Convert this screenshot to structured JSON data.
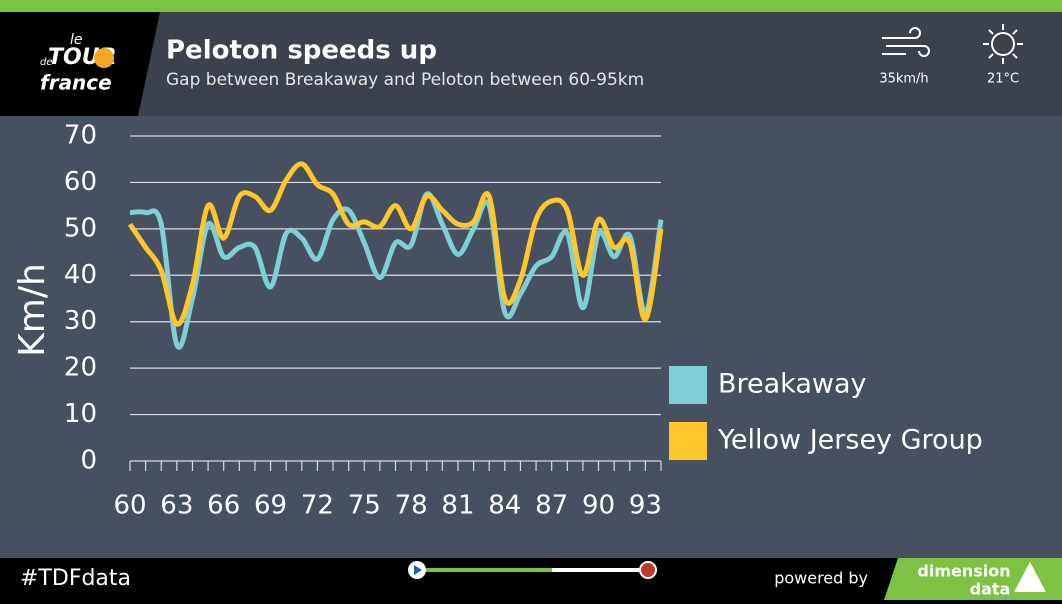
{
  "header": {
    "logo": [
      "le",
      "TOUR",
      "de",
      "france"
    ],
    "title": "Peloton speeds up",
    "subtitle": "Gap between Breakaway and Peloton between 60-95km"
  },
  "weather": {
    "wind": "35km/h",
    "temperature": "21°C"
  },
  "chart_data": {
    "type": "line",
    "y_label": "Km/h",
    "x": [
      60,
      61,
      62,
      63,
      64,
      65,
      66,
      67,
      68,
      69,
      70,
      71,
      72,
      73,
      74,
      75,
      76,
      77,
      78,
      79,
      80,
      81,
      82,
      83,
      84,
      85,
      86,
      87,
      88,
      89,
      90,
      91,
      92,
      93,
      94
    ],
    "series": [
      {
        "name": "Breakaway",
        "color": "#7ecfd6",
        "values": [
          53.5,
          53.5,
          51,
          25,
          35,
          51,
          44,
          46,
          46,
          37.5,
          49,
          48,
          43.5,
          52,
          54,
          47,
          39.5,
          47,
          46.5,
          57.5,
          51,
          44.5,
          50,
          55,
          32,
          36,
          42,
          44,
          49,
          33,
          49,
          44,
          48.5,
          32,
          52
        ]
      },
      {
        "name": "Yellow Jersey Group",
        "color": "#ffc72c",
        "values": [
          51,
          46,
          41,
          29.5,
          38,
          55,
          48,
          57,
          57,
          54,
          60.5,
          64,
          59.5,
          57.5,
          51,
          51.5,
          50.5,
          55,
          50,
          57,
          54,
          51,
          51.5,
          57,
          35,
          39,
          52,
          56,
          54,
          40,
          52,
          46,
          47,
          30.5,
          50
        ]
      }
    ],
    "xlim": [
      60,
      94
    ],
    "xticks": [
      60,
      63,
      66,
      69,
      72,
      75,
      78,
      81,
      84,
      87,
      90,
      93
    ],
    "xminorticks": [
      61,
      62,
      64,
      65,
      67,
      68,
      70,
      71,
      73,
      74,
      76,
      77,
      79,
      80,
      82,
      83,
      85,
      86,
      88,
      89,
      91,
      92,
      94
    ],
    "ylim": [
      0,
      70
    ],
    "yticks": [
      0,
      10,
      20,
      30,
      40,
      50,
      60,
      70
    ],
    "grid": true
  },
  "footer": {
    "hashtag": "#TDFdata",
    "powered": "powered by",
    "brand": [
      "dimension",
      "data"
    ]
  }
}
